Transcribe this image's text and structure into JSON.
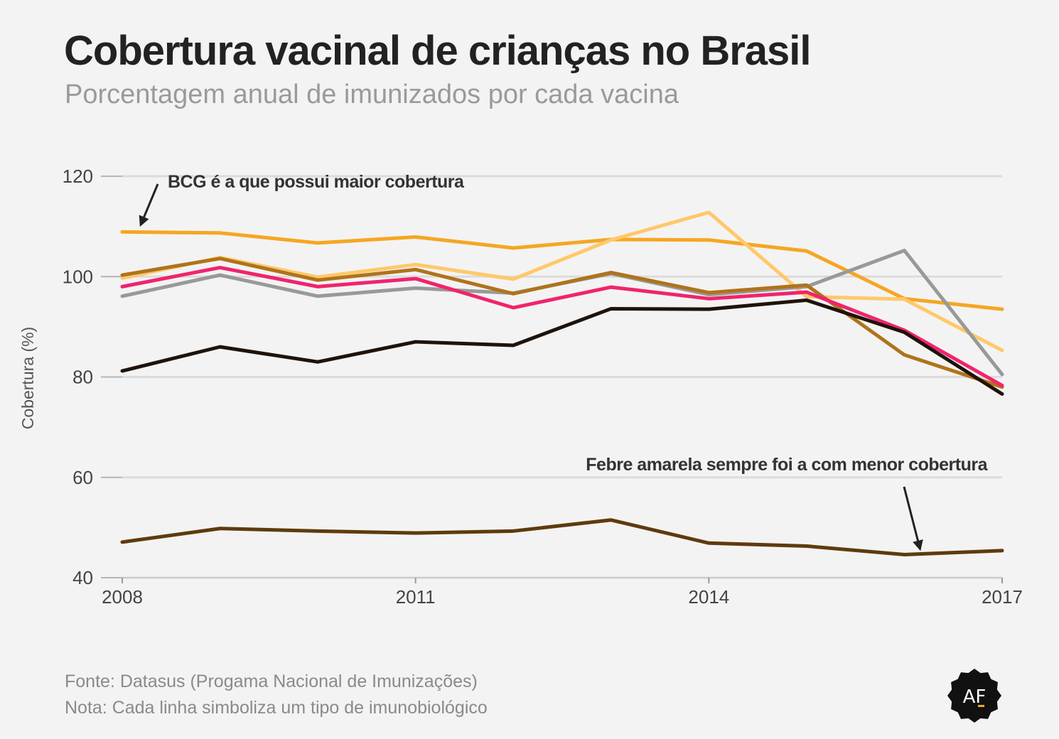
{
  "header": {
    "title": "Cobertura vacinal de crianças no Brasil",
    "subtitle": "Porcentagem anual de imunizados por cada vacina"
  },
  "footer": {
    "source": "Fonte: Datasus (Progama Nacional de Imunizações)",
    "note": "Nota: Cada linha simboliza um tipo de imunobiológico"
  },
  "logo": {
    "text": "AF",
    "color": "#111111",
    "accent": "#f5a623"
  },
  "chart_data": {
    "type": "line",
    "title": "Cobertura vacinal de crianças no Brasil",
    "subtitle": "Porcentagem anual de imunizados por cada vacina",
    "xlabel": "",
    "ylabel": "Cobertura (%)",
    "x": [
      2008,
      2009,
      2010,
      2011,
      2012,
      2013,
      2014,
      2015,
      2016,
      2017
    ],
    "xticks": [
      "2008",
      "2011",
      "2014",
      "2017"
    ],
    "ylim": [
      40,
      120
    ],
    "yticks": [
      40,
      60,
      80,
      100,
      120
    ],
    "grid": true,
    "legend": "none",
    "series": [
      {
        "color": "#f5a623",
        "values": [
          108.9,
          108.7,
          106.7,
          107.9,
          105.7,
          107.4,
          107.3,
          105.1,
          95.6,
          93.5
        ]
      },
      {
        "color": "#ffc869",
        "values": [
          99.7,
          103.8,
          99.9,
          102.4,
          99.5,
          107.3,
          112.8,
          96.0,
          95.5,
          85.3
        ]
      },
      {
        "color": "#999999",
        "values": [
          96.1,
          100.3,
          96.1,
          97.7,
          96.7,
          100.6,
          96.4,
          98.0,
          105.2,
          80.5
        ]
      },
      {
        "color": "#b0731a",
        "values": [
          100.3,
          103.6,
          99.3,
          101.4,
          96.6,
          100.8,
          96.8,
          98.3,
          84.4,
          78.0
        ]
      },
      {
        "color": "#f0246d",
        "values": [
          98.0,
          101.8,
          98.0,
          99.6,
          93.8,
          97.9,
          95.6,
          96.9,
          89.3,
          78.3
        ]
      },
      {
        "color": "#1e130a",
        "values": [
          81.2,
          86.0,
          83.0,
          87.0,
          86.3,
          93.6,
          93.5,
          95.3,
          88.9,
          76.6
        ]
      },
      {
        "color": "#5e3a0e",
        "values": [
          47.1,
          49.8,
          49.3,
          48.9,
          49.3,
          51.5,
          46.9,
          46.3,
          44.6,
          45.4
        ]
      }
    ],
    "annotations": [
      {
        "text": "BCG é a que possui maior cobertura",
        "x": 2008,
        "y": 108.9
      },
      {
        "text": "Febre amarela sempre foi a com menor cobertura",
        "x": 2016,
        "y": 44.6
      }
    ]
  }
}
